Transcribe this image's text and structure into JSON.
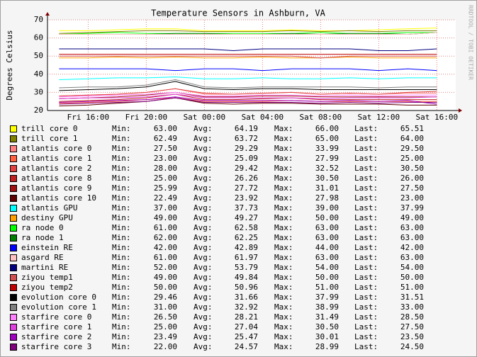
{
  "chart_data": {
    "type": "line",
    "title": "Temperature Sensors in Ashburn, VA",
    "y_label": "Degrees Celsius",
    "watermark": "RRDTOOL / TOBI OETIKER",
    "x": [
      14,
      16,
      18,
      20,
      22,
      24,
      26,
      28,
      30,
      32,
      34,
      36,
      38,
      40
    ],
    "xlim": [
      13.2,
      41.3
    ],
    "xticks": [
      {
        "value": 16,
        "label": "Fri 16:00"
      },
      {
        "value": 20,
        "label": "Fri 20:00"
      },
      {
        "value": 24,
        "label": "Sat 00:00"
      },
      {
        "value": 28,
        "label": "Sat 04:00"
      },
      {
        "value": 32,
        "label": "Sat 08:00"
      },
      {
        "value": 36,
        "label": "Sat 12:00"
      },
      {
        "value": 40,
        "label": "Sat 16:00"
      }
    ],
    "ylim": [
      20,
      70
    ],
    "yticks": [
      20,
      30,
      40,
      50,
      60,
      70
    ],
    "grid": true,
    "legend_fields": [
      "Min:",
      "Avg:",
      "Max:",
      "Last:"
    ],
    "series": [
      {
        "name": "trill core 0",
        "color": "#ffff00",
        "values": [
          64,
          64,
          64.5,
          65,
          65,
          64,
          64,
          64,
          64.5,
          64,
          64,
          64.5,
          65,
          65.5
        ],
        "stats": [
          "63.00",
          "64.19",
          "66.00",
          "65.51"
        ]
      },
      {
        "name": "trill core 1",
        "color": "#808000",
        "values": [
          62.5,
          63,
          63.5,
          64,
          64,
          63.5,
          63.5,
          63.5,
          64,
          63.5,
          64,
          63.5,
          64,
          64
        ],
        "stats": [
          "62.49",
          "63.72",
          "65.00",
          "64.00"
        ]
      },
      {
        "name": "atlantis core 0",
        "color": "#ff8080",
        "values": [
          28,
          28.5,
          29,
          30,
          32,
          29,
          29,
          29.5,
          30,
          29,
          29.5,
          29,
          29.5,
          29.5
        ],
        "stats": [
          "27.50",
          "29.29",
          "33.99",
          "29.50"
        ]
      },
      {
        "name": "atlantis core 1",
        "color": "#ff6040",
        "values": [
          24,
          24.5,
          25,
          26,
          27,
          25,
          25,
          25,
          25.5,
          25,
          25,
          25,
          25,
          25
        ],
        "stats": [
          "23.00",
          "25.09",
          "27.99",
          "25.00"
        ]
      },
      {
        "name": "atlantis core 2",
        "color": "#e04040",
        "values": [
          28,
          28.5,
          29,
          30,
          32,
          29.5,
          29,
          29.5,
          30,
          29,
          29.5,
          29,
          30,
          30.5
        ],
        "stats": [
          "28.00",
          "29.42",
          "32.52",
          "30.50"
        ]
      },
      {
        "name": "atlantis core 8",
        "color": "#c02020",
        "values": [
          25,
          25.5,
          26,
          27,
          29,
          26,
          26,
          26.5,
          27,
          26,
          26,
          26,
          26,
          26
        ],
        "stats": [
          "25.00",
          "26.26",
          "30.50",
          "26.00"
        ]
      },
      {
        "name": "atlantis core 9",
        "color": "#a01010",
        "values": [
          26.5,
          27,
          27.5,
          28.5,
          30,
          27.5,
          27.5,
          28,
          28,
          27.5,
          27.5,
          27.5,
          27.5,
          27.5
        ],
        "stats": [
          "25.99",
          "27.72",
          "31.01",
          "27.50"
        ]
      },
      {
        "name": "atlantis core 10",
        "color": "#600000",
        "values": [
          22.5,
          23,
          24,
          25,
          27,
          24,
          23.5,
          24,
          24,
          23.5,
          23.5,
          23.5,
          23,
          23
        ],
        "stats": [
          "22.49",
          "23.92",
          "27.98",
          "23.00"
        ]
      },
      {
        "name": "atlantis GPU",
        "color": "#00ffff",
        "values": [
          37,
          37.5,
          38,
          38,
          38.5,
          37.5,
          37.5,
          38,
          37.5,
          37.5,
          38,
          37.5,
          38,
          38
        ],
        "stats": [
          "37.00",
          "37.73",
          "39.00",
          "37.99"
        ]
      },
      {
        "name": "destiny GPU",
        "color": "#ffa000",
        "values": [
          49,
          49,
          49.5,
          49,
          49.5,
          49,
          49,
          49.5,
          49,
          49,
          49.5,
          49,
          49,
          49
        ],
        "stats": [
          "49.00",
          "49.27",
          "50.00",
          "49.00"
        ]
      },
      {
        "name": "ra node 0",
        "color": "#00ff00",
        "values": [
          62,
          62.5,
          63,
          62.5,
          62.5,
          62.5,
          62.5,
          62.5,
          62.5,
          63,
          62.5,
          62.5,
          63,
          63
        ],
        "stats": [
          "61.00",
          "62.58",
          "63.00",
          "63.00"
        ]
      },
      {
        "name": "ra node 1",
        "color": "#008000",
        "values": [
          62,
          62,
          62,
          62,
          62.5,
          62.5,
          62,
          62,
          62.5,
          62,
          62.5,
          62.5,
          62,
          63
        ],
        "stats": [
          "62.00",
          "62.25",
          "63.00",
          "63.00"
        ]
      },
      {
        "name": "einstein RE",
        "color": "#0000ff",
        "values": [
          43,
          43,
          43,
          43,
          42,
          43,
          43,
          42,
          43,
          43,
          43,
          42,
          43,
          42
        ],
        "stats": [
          "42.00",
          "42.89",
          "44.00",
          "42.00"
        ]
      },
      {
        "name": "asgard RE",
        "color": "#ffc0c0",
        "values": [
          62,
          62,
          62,
          62,
          62,
          62,
          62,
          62,
          62,
          62,
          62,
          62,
          62,
          63
        ],
        "stats": [
          "61.00",
          "61.97",
          "63.00",
          "63.00"
        ]
      },
      {
        "name": "martini RE",
        "color": "#000080",
        "values": [
          54,
          54,
          54,
          54,
          54,
          54,
          53,
          54,
          54,
          54,
          54,
          53,
          53,
          54
        ],
        "stats": [
          "52.00",
          "53.79",
          "54.00",
          "54.00"
        ]
      },
      {
        "name": "ziyou temp1",
        "color": "#d05050",
        "values": [
          50,
          50,
          50,
          50,
          50,
          50,
          50,
          50,
          50,
          49,
          50,
          50,
          50,
          50
        ],
        "stats": [
          "49.00",
          "49.84",
          "50.00",
          "50.00"
        ]
      },
      {
        "name": "ziyou temp2",
        "color": "#c00000",
        "values": [
          51,
          51,
          51,
          51,
          51,
          51,
          51,
          51,
          51,
          51,
          51,
          51,
          51,
          51
        ],
        "stats": [
          "50.00",
          "50.96",
          "51.00",
          "51.00"
        ]
      },
      {
        "name": "evolution core 0",
        "color": "#000000",
        "values": [
          31,
          31.5,
          32,
          33,
          36,
          32,
          31.5,
          32,
          32,
          31.5,
          31.5,
          31.5,
          31.5,
          31.5
        ],
        "stats": [
          "29.46",
          "31.66",
          "37.99",
          "31.51"
        ]
      },
      {
        "name": "evolution core 1",
        "color": "#808080",
        "values": [
          32.5,
          33,
          33,
          34,
          37,
          33,
          32.5,
          33,
          33,
          33,
          33,
          32.5,
          33,
          33
        ],
        "stats": [
          "31.00",
          "32.92",
          "38.99",
          "33.00"
        ]
      },
      {
        "name": "starfire core 0",
        "color": "#ff80ff",
        "values": [
          27.5,
          28,
          28.5,
          29,
          30,
          28,
          28,
          28.5,
          28.5,
          28,
          28.5,
          28,
          28.5,
          28.5
        ],
        "stats": [
          "26.50",
          "28.21",
          "31.49",
          "28.50"
        ]
      },
      {
        "name": "starfire core 1",
        "color": "#e040e0",
        "values": [
          26.5,
          27,
          27,
          27.5,
          29,
          27,
          27,
          27,
          27,
          26.5,
          27,
          27,
          27,
          27.5
        ],
        "stats": [
          "25.00",
          "27.04",
          "30.50",
          "27.50"
        ]
      },
      {
        "name": "starfire core 2",
        "color": "#a000c0",
        "values": [
          24.5,
          25,
          25.5,
          26,
          27.5,
          25.5,
          25.5,
          25.5,
          25.5,
          25,
          25.5,
          25,
          25.5,
          23.5
        ],
        "stats": [
          "23.49",
          "25.47",
          "30.01",
          "23.50"
        ]
      },
      {
        "name": "starfire core 3",
        "color": "#800080",
        "values": [
          23.5,
          24,
          24.5,
          25,
          27,
          24.5,
          24.5,
          24.5,
          24.5,
          24,
          24.5,
          24,
          24.5,
          24.5
        ],
        "stats": [
          "22.00",
          "24.57",
          "28.99",
          "24.50"
        ]
      }
    ]
  }
}
